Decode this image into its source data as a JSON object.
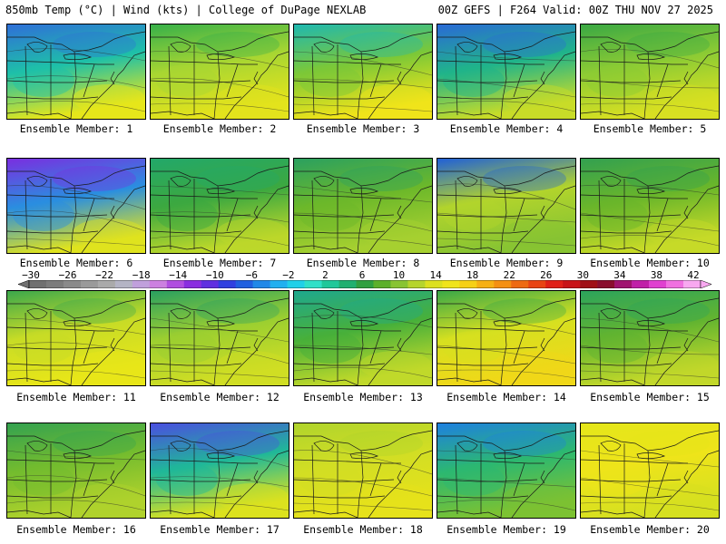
{
  "header": {
    "left": "850mb Temp (°C) | Wind (kts) | College of DuPage NEXLAB",
    "right": "00Z GEFS | F264 Valid: 00Z THU NOV 27 2025"
  },
  "members": [
    {
      "label": "Ensemble Member: 1",
      "north": "#2f6fd8",
      "mid": "#1ec0a8",
      "south": "#e6e61a"
    },
    {
      "label": "Ensemble Member: 2",
      "north": "#37b04a",
      "mid": "#a8d632",
      "south": "#e3e31c"
    },
    {
      "label": "Ensemble Member: 3",
      "north": "#1fb8b0",
      "mid": "#7cc837",
      "south": "#f0e41a"
    },
    {
      "label": "Ensemble Member: 4",
      "north": "#2a6ad6",
      "mid": "#20b48a",
      "south": "#c8dc28"
    },
    {
      "label": "Ensemble Member: 5",
      "north": "#3aa844",
      "mid": "#8ccb34",
      "south": "#d8e022"
    },
    {
      "label": "Ensemble Member: 6",
      "north": "#7a2ee0",
      "mid": "#2a8ee0",
      "south": "#dfe31e"
    },
    {
      "label": "Ensemble Member: 7",
      "north": "#22a86a",
      "mid": "#3ca840",
      "south": "#bcd82a"
    },
    {
      "label": "Ensemble Member: 8",
      "north": "#2aa060",
      "mid": "#6cb82a",
      "south": "#a6d030"
    },
    {
      "label": "Ensemble Member: 9",
      "north": "#2060d8",
      "mid": "#b2d42c",
      "south": "#88c432"
    },
    {
      "label": "Ensemble Member: 10",
      "north": "#32a050",
      "mid": "#6ab62a",
      "south": "#c6da28"
    },
    {
      "label": "Ensemble Member: 11",
      "north": "#3ca84c",
      "mid": "#c8dc26",
      "south": "#e8e618"
    },
    {
      "label": "Ensemble Member: 12",
      "north": "#2aa060",
      "mid": "#9ccf30",
      "south": "#d0de24"
    },
    {
      "label": "Ensemble Member: 13",
      "north": "#1ea88e",
      "mid": "#48b03a",
      "south": "#c0d92a"
    },
    {
      "label": "Ensemble Member: 14",
      "north": "#3aa848",
      "mid": "#d6e020",
      "south": "#f0d818"
    },
    {
      "label": "Ensemble Member: 15",
      "north": "#2ca45c",
      "mid": "#62b430",
      "south": "#c2d82a"
    },
    {
      "label": "Ensemble Member: 16",
      "north": "#34a250",
      "mid": "#74bc2e",
      "south": "#b0d22c"
    },
    {
      "label": "Ensemble Member: 17",
      "north": "#4a4ee0",
      "mid": "#20b898",
      "south": "#dce21e"
    },
    {
      "label": "Ensemble Member: 18",
      "north": "#b0d42c",
      "mid": "#d2de24",
      "south": "#e6e21a"
    },
    {
      "label": "Ensemble Member: 19",
      "north": "#1e80e0",
      "mid": "#2cb870",
      "south": "#7cc232"
    },
    {
      "label": "Ensemble Member: 20",
      "north": "#e4e61a",
      "mid": "#eee41a",
      "south": "#d6e020"
    }
  ],
  "colorbar": {
    "labels": [
      "−30",
      "−26",
      "−22",
      "−18",
      "−14",
      "−10",
      "−6",
      "−2",
      "2",
      "6",
      "10",
      "14",
      "18",
      "22",
      "26",
      "30",
      "34",
      "38",
      "42"
    ],
    "colors": [
      "#707070",
      "#7c7c7c",
      "#8a8a8a",
      "#9a9a9a",
      "#aaaaaa",
      "#b4b4c4",
      "#c0a0dc",
      "#cc80e0",
      "#b04ee0",
      "#8a2ee0",
      "#6030e0",
      "#3040e0",
      "#2060e0",
      "#2088e8",
      "#20b0f0",
      "#20d0e8",
      "#30e0c8",
      "#20c89a",
      "#20b070",
      "#30a040",
      "#5cb02a",
      "#88c432",
      "#b6d42c",
      "#dce01e",
      "#f0e41a",
      "#f6d016",
      "#f6b014",
      "#f49012",
      "#ee6a12",
      "#e84414",
      "#e02018",
      "#c81418",
      "#a01016",
      "#8a0e2e",
      "#a01470",
      "#c020a8",
      "#e040d0",
      "#f070e0",
      "#f8a8f0"
    ]
  }
}
